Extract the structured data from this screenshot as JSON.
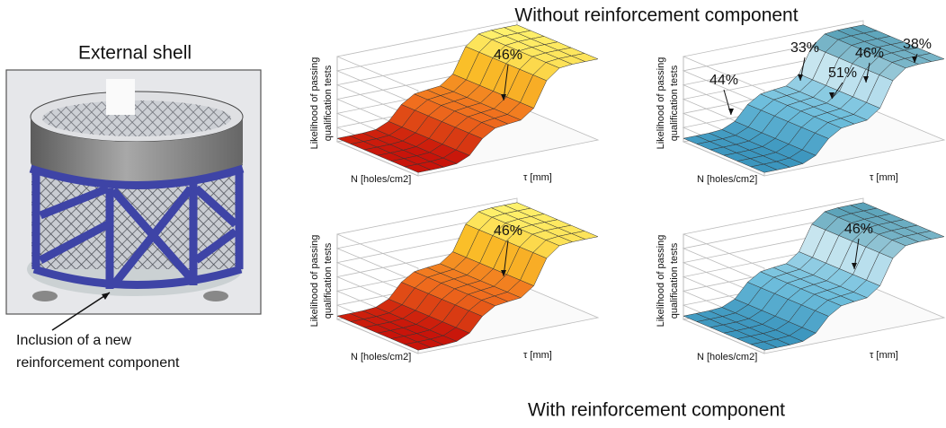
{
  "shell": {
    "title": "External shell",
    "caption": [
      "Inclusion of a new",
      "reinforcement component"
    ]
  },
  "top_heading": "Without reinforcement component",
  "bottom_heading": "With reinforcement component",
  "panels": [
    {
      "y_label": [
        "Likelihood of passing",
        "qualification tests"
      ],
      "x_label": "N [holes/cm2]",
      "z_label": "τ [mm]",
      "annotations": [
        "46%"
      ]
    },
    {
      "y_label": [
        "Likelihood of passing",
        "qualification tests"
      ],
      "x_label": "N [holes/cm2]",
      "z_label": "τ [mm]",
      "annotations": [
        "44%",
        "33%",
        "51%",
        "46%",
        "38%"
      ]
    },
    {
      "y_label": [
        "Likelihood of passing",
        "qualification tests"
      ],
      "x_label": "N [holes/cm2]",
      "z_label": "τ [mm]",
      "annotations": [
        "46%"
      ]
    },
    {
      "y_label": [
        "Likelihood of passing",
        "qualification tests"
      ],
      "x_label": "N [holes/cm2]",
      "z_label": "τ [mm]",
      "annotations": [
        "46%"
      ]
    }
  ]
}
